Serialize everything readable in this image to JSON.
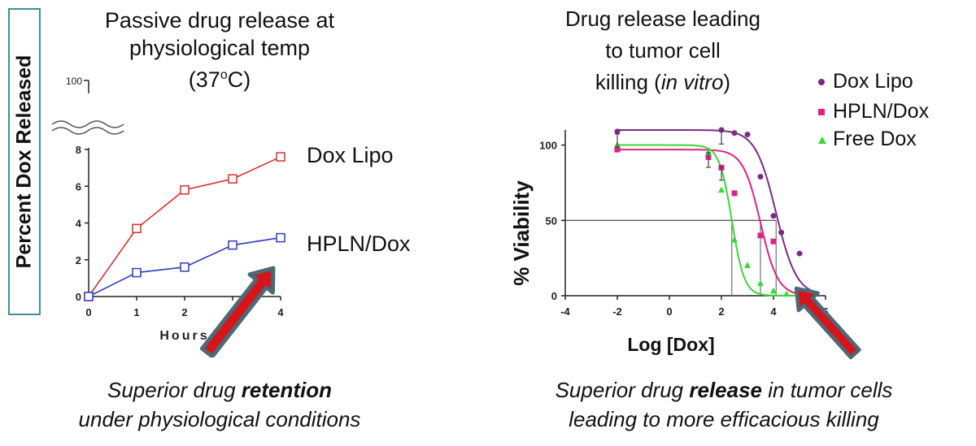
{
  "left_panel": {
    "title_lines": [
      "Passive drug release at",
      "physiological temp"
    ],
    "title_temp_base": "(37",
    "title_temp_sup": "o",
    "title_temp_end": "C)",
    "ylabel": "Percent Dox Released",
    "broken_axis_top_label": "100",
    "caption_line1_pre": "Superior drug ",
    "caption_line1_bold": "retention",
    "caption_line2": "under physiological conditions"
  },
  "right_panel": {
    "title_line1": "Drug release leading",
    "title_line2": "to tumor cell",
    "title_line3_pre": "killing (",
    "title_line3_italic": "in vitro",
    "title_line3_post": ")",
    "caption_line1_pre": "Superior drug ",
    "caption_line1_bold": "release",
    "caption_line1_post": " in tumor cells",
    "caption_line2": "leading to more efficacious killing"
  },
  "colors": {
    "dox_lipo_left": "#d9302c",
    "hpln_left": "#2e3cc4",
    "dox_lipo_right": "#7b2a86",
    "hpln_right": "#e0218a",
    "free_dox": "#36d936",
    "arrow_fill": "#d8141b",
    "arrow_outline": "#4a6a75",
    "frame": "#3f8f96"
  },
  "chart_data": [
    {
      "type": "line",
      "title": "Passive drug release at physiological temp (37oC)",
      "xlabel": "Hours",
      "ylabel": "Percent Dox Released",
      "x": [
        0,
        1,
        2,
        3,
        4
      ],
      "x_ticks": [
        "0",
        "1",
        "2",
        "3",
        "4"
      ],
      "y_ticks": [
        "0",
        "2",
        "4",
        "6",
        "8"
      ],
      "xlim": [
        0,
        4
      ],
      "ylim": [
        0,
        8
      ],
      "broken_axis_top": "100",
      "series": [
        {
          "name": "Dox Lipo",
          "values": [
            0,
            3.7,
            5.8,
            6.4,
            7.6
          ]
        },
        {
          "name": "HPLN/Dox",
          "values": [
            0,
            1.3,
            1.6,
            2.8,
            3.2
          ]
        }
      ],
      "legend": "right, labels beside line ends"
    },
    {
      "type": "scatter",
      "title": "Drug release leading to tumor cell killing (in vitro)",
      "xlabel": "Log [Dox]",
      "ylabel": "% Viability",
      "x_ticks": [
        "-4",
        "-2",
        "0",
        "2",
        "4",
        "6"
      ],
      "y_ticks": [
        "0",
        "50",
        "100"
      ],
      "xlim": [
        -4,
        6
      ],
      "ylim": [
        0,
        110
      ],
      "reference_line_y": 50,
      "series": [
        {
          "name": "Dox Lipo",
          "x": [
            -2,
            2,
            2.5,
            3,
            3.5,
            4,
            4.3,
            5
          ],
          "y": [
            109,
            110,
            108,
            107,
            79,
            53,
            42,
            28
          ],
          "ec50_log": 4.1
        },
        {
          "name": "HPLN/Dox",
          "x": [
            -2,
            1.5,
            2,
            2.5,
            3.5,
            4
          ],
          "y": [
            97,
            92,
            85,
            68,
            40,
            36
          ],
          "ec50_log": 3.5
        },
        {
          "name": "Free Dox",
          "x": [
            -2,
            1.5,
            2,
            2.5,
            3,
            3.5,
            4,
            4.5
          ],
          "y": [
            100,
            95,
            70,
            37,
            20,
            8,
            3,
            1
          ],
          "ec50_log": 2.4
        }
      ],
      "legend": "top-right"
    }
  ]
}
